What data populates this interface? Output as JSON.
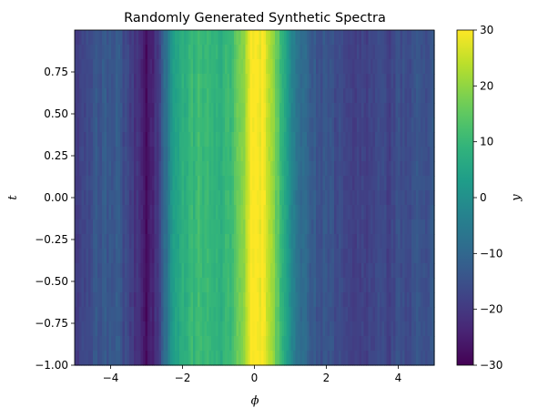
{
  "chart_data": {
    "type": "heatmap",
    "title": "Randomly Generated Synthetic Spectra",
    "xlabel": "ϕ",
    "ylabel": "t",
    "colorbar_label": "y",
    "colormap": "viridis",
    "xlim": [
      -5,
      5
    ],
    "ylim": [
      -1,
      1
    ],
    "clim": [
      -30,
      30
    ],
    "x_ticks": [
      -4,
      -2,
      0,
      2,
      4
    ],
    "x_tick_labels": [
      "−4",
      "−2",
      "0",
      "2",
      "4"
    ],
    "y_ticks": [
      -1.0,
      -0.75,
      -0.5,
      -0.25,
      0.0,
      0.25,
      0.5,
      0.75
    ],
    "y_tick_labels": [
      "−1.00",
      "−0.75",
      "−0.50",
      "−0.25",
      "0.00",
      "0.25",
      "0.50",
      "0.75"
    ],
    "colorbar_ticks": [
      -30,
      -20,
      -10,
      0,
      10,
      20,
      30
    ],
    "colorbar_tick_labels": [
      "−30",
      "−20",
      "−10",
      "0",
      "10",
      "20",
      "30"
    ],
    "profile": {
      "x": [
        -5.0,
        -4.75,
        -4.5,
        -4.25,
        -4.0,
        -3.75,
        -3.5,
        -3.25,
        -3.0,
        -2.75,
        -2.5,
        -2.25,
        -2.0,
        -1.75,
        -1.5,
        -1.25,
        -1.0,
        -0.75,
        -0.5,
        -0.25,
        -0.1,
        0.0,
        0.25,
        0.5,
        0.75,
        1.0,
        1.25,
        1.5,
        1.75,
        2.0,
        2.25,
        2.5,
        2.75,
        3.0,
        3.25,
        3.5,
        3.75,
        4.0,
        4.25,
        4.5,
        4.75,
        5.0
      ],
      "y": [
        -20,
        -17,
        -15,
        -14,
        -13,
        -14,
        -18,
        -22,
        -27,
        -22,
        -10,
        3,
        8,
        10,
        11,
        10,
        8,
        10,
        14,
        22,
        29,
        30,
        29,
        22,
        10,
        -2,
        -8,
        -12,
        -14,
        -15,
        -16,
        -16,
        -18,
        -19,
        -17,
        -16,
        -18,
        -16,
        -17,
        -15,
        -15,
        -14
      ]
    },
    "grid": false,
    "legend": "none"
  }
}
